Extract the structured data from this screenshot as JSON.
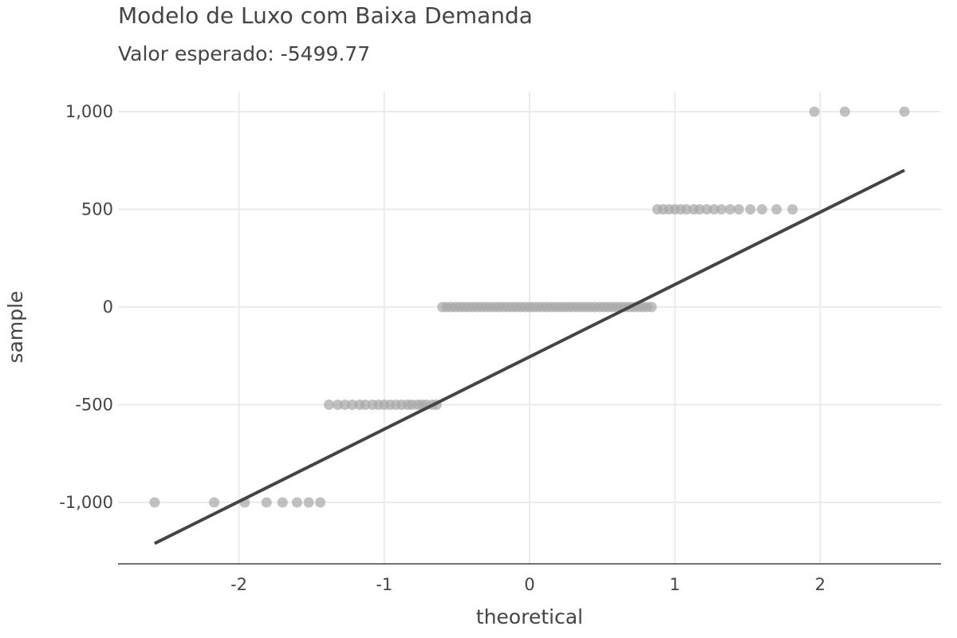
{
  "chart_data": {
    "type": "scatter",
    "title": "Modelo de Luxo com Baixa Demanda",
    "subtitle": "Valor esperado: -5499.77",
    "xlabel": "theoretical",
    "ylabel": "sample",
    "xlim": [
      -2.8,
      2.8
    ],
    "ylim": [
      -1320,
      1110
    ],
    "grid": true,
    "xticks": [
      -2,
      -1,
      0,
      1,
      2
    ],
    "xtick_labels": [
      "-2",
      "-1",
      "0",
      "1",
      "2"
    ],
    "yticks": [
      1000,
      500,
      0,
      -500,
      -1000
    ],
    "ytick_labels": [
      "1,000",
      "500",
      "0",
      "-500",
      "-1,000"
    ],
    "series": [
      {
        "type": "scatter",
        "groups": [
          {
            "y": -1000,
            "x": [
              -2.58,
              -2.17,
              -1.96,
              -1.81,
              -1.7,
              -1.6,
              -1.52,
              -1.44
            ]
          },
          {
            "y": -500,
            "x": [
              -1.38,
              -1.32,
              -1.27,
              -1.22,
              -1.17,
              -1.13,
              -1.08,
              -1.04,
              -1.0,
              -0.96,
              -0.92,
              -0.88,
              -0.84,
              -0.81,
              -0.77,
              -0.74,
              -0.71,
              -0.67,
              -0.64
            ]
          },
          {
            "y": 0,
            "x": [
              -0.6,
              -0.57,
              -0.54,
              -0.51,
              -0.48,
              -0.45,
              -0.42,
              -0.39,
              -0.36,
              -0.33,
              -0.3,
              -0.27,
              -0.24,
              -0.21,
              -0.18,
              -0.15,
              -0.12,
              -0.09,
              -0.06,
              -0.03,
              0.0,
              0.03,
              0.06,
              0.09,
              0.12,
              0.15,
              0.18,
              0.21,
              0.24,
              0.27,
              0.3,
              0.33,
              0.36,
              0.39,
              0.42,
              0.45,
              0.48,
              0.51,
              0.54,
              0.57,
              0.6,
              0.63,
              0.66,
              0.69,
              0.72,
              0.75,
              0.78,
              0.81,
              0.84
            ]
          },
          {
            "y": 500,
            "x": [
              0.88,
              0.92,
              0.96,
              1.0,
              1.04,
              1.08,
              1.13,
              1.17,
              1.22,
              1.27,
              1.32,
              1.38,
              1.44,
              1.52,
              1.6,
              1.7,
              1.81
            ]
          },
          {
            "y": 1000,
            "x": [
              1.96,
              2.17,
              2.58
            ]
          }
        ]
      },
      {
        "type": "line",
        "x": [
          -2.58,
          2.58
        ],
        "y": [
          -1210,
          700
        ]
      }
    ]
  }
}
